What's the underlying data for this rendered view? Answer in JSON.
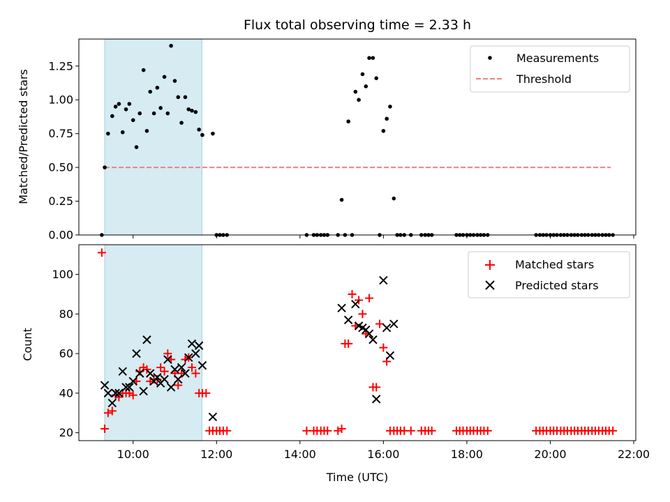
{
  "chart_data": {
    "title": "Flux total observing time = 2.33 h",
    "xlabel": "Time (UTC)",
    "xlim": [
      8.7,
      22.05
    ],
    "xticks": [
      10,
      12,
      14,
      16,
      18,
      20,
      22
    ],
    "xtick_labels": [
      "10:00",
      "12:00",
      "14:00",
      "16:00",
      "18:00",
      "20:00",
      "22:00"
    ],
    "shaded_span": [
      9.32,
      11.65
    ],
    "shade_color": "#add8e6",
    "panels": [
      {
        "type": "scatter",
        "ylabel": "Matched/Predicted stars",
        "ylim": [
          0,
          1.45
        ],
        "yticks": [
          0.0,
          0.25,
          0.5,
          0.75,
          1.0,
          1.25
        ],
        "ytick_labels": [
          "0.00",
          "0.25",
          "0.50",
          "0.75",
          "1.00",
          "1.25"
        ],
        "legend": {
          "position": "top-right",
          "entries": [
            "Measurements",
            "Threshold"
          ]
        },
        "series": [
          {
            "name": "Measurements",
            "marker": "dot",
            "color": "#000000",
            "x": [
              9.25,
              9.32,
              9.4,
              9.5,
              9.58,
              9.66,
              9.75,
              9.83,
              9.91,
              10.0,
              10.08,
              10.16,
              10.25,
              10.33,
              10.41,
              10.5,
              10.58,
              10.66,
              10.75,
              10.83,
              10.91,
              11.0,
              11.08,
              11.16,
              11.25,
              11.33,
              11.41,
              11.5,
              11.58,
              11.66,
              11.91,
              12.0,
              12.08,
              12.16,
              12.25,
              14.16,
              14.33,
              14.41,
              14.5,
              14.58,
              14.66,
              14.91,
              15.0,
              15.08,
              15.16,
              15.25,
              15.33,
              15.41,
              15.5,
              15.58,
              15.66,
              15.75,
              15.83,
              15.91,
              16.0,
              16.08,
              16.16,
              16.25,
              16.33,
              16.41,
              16.5,
              16.66,
              16.91,
              17.0,
              17.08,
              17.16,
              17.75,
              17.83,
              17.91,
              18.0,
              18.08,
              18.16,
              18.25,
              18.33,
              18.41,
              18.5,
              19.66,
              19.75,
              19.83,
              19.91,
              20.0,
              20.08,
              20.16,
              20.25,
              20.33,
              20.41,
              20.5,
              20.58,
              20.66,
              20.75,
              20.83,
              20.91,
              21.0,
              21.08,
              21.16,
              21.25,
              21.33,
              21.41,
              21.5
            ],
            "y": [
              0.0,
              0.5,
              0.75,
              0.88,
              0.95,
              0.97,
              0.76,
              0.93,
              0.97,
              0.85,
              0.65,
              0.9,
              1.22,
              0.77,
              1.06,
              0.9,
              1.09,
              0.94,
              1.17,
              0.9,
              1.4,
              1.14,
              1.02,
              0.83,
              1.02,
              0.93,
              0.92,
              0.91,
              0.78,
              0.74,
              0.75,
              0.0,
              0.0,
              0.0,
              0.0,
              0.0,
              0.0,
              0.0,
              0.0,
              0.0,
              0.0,
              0.0,
              0.26,
              0.0,
              0.84,
              0.0,
              1.06,
              1.0,
              1.19,
              1.1,
              1.31,
              1.31,
              1.16,
              0.0,
              0.77,
              0.86,
              0.95,
              0.27,
              0.0,
              0.0,
              0.0,
              0.0,
              0.0,
              0.0,
              0.0,
              0.0,
              0.0,
              0.0,
              0.0,
              0.0,
              0.0,
              0.0,
              0.0,
              0.0,
              0.0,
              0.0,
              0.0,
              0.0,
              0.0,
              0.0,
              0.0,
              0.0,
              0.0,
              0.0,
              0.0,
              0.0,
              0.0,
              0.0,
              0.0,
              0.0,
              0.0,
              0.0,
              0.0,
              0.0,
              0.0,
              0.0,
              0.0,
              0.0,
              0.0
            ]
          },
          {
            "name": "Threshold",
            "type": "line",
            "style": "dashed",
            "color": "#f08080",
            "x": [
              9.32,
              21.45
            ],
            "y": [
              0.5,
              0.5
            ]
          }
        ]
      },
      {
        "type": "scatter",
        "ylabel": "Count",
        "ylim": [
          16,
          115
        ],
        "yticks": [
          20,
          40,
          60,
          80,
          100
        ],
        "ytick_labels": [
          "20",
          "40",
          "60",
          "80",
          "100"
        ],
        "legend": {
          "position": "top-right",
          "entries": [
            "Matched stars",
            "Predicted stars"
          ]
        },
        "series": [
          {
            "name": "Matched stars",
            "marker": "plus",
            "color": "#ff0000",
            "x": [
              9.25,
              9.32,
              9.4,
              9.5,
              9.58,
              9.66,
              9.75,
              9.83,
              9.91,
              10.0,
              10.08,
              10.16,
              10.25,
              10.33,
              10.41,
              10.5,
              10.58,
              10.66,
              10.75,
              10.83,
              10.91,
              11.0,
              11.08,
              11.16,
              11.25,
              11.33,
              11.41,
              11.5,
              11.58,
              11.66,
              11.75,
              11.83,
              11.91,
              12.0,
              12.08,
              12.16,
              12.25,
              14.16,
              14.33,
              14.41,
              14.5,
              14.58,
              14.66,
              14.91,
              15.0,
              15.08,
              15.16,
              15.25,
              15.33,
              15.41,
              15.5,
              15.58,
              15.66,
              15.75,
              15.83,
              15.91,
              16.0,
              16.08,
              16.16,
              16.25,
              16.33,
              16.41,
              16.5,
              16.66,
              16.91,
              17.0,
              17.08,
              17.16,
              17.75,
              17.83,
              17.91,
              18.0,
              18.08,
              18.16,
              18.25,
              18.33,
              18.41,
              18.5,
              19.66,
              19.75,
              19.83,
              19.91,
              20.0,
              20.08,
              20.16,
              20.25,
              20.33,
              20.41,
              20.5,
              20.58,
              20.66,
              20.75,
              20.83,
              20.91,
              21.0,
              21.08,
              21.16,
              21.25,
              21.33,
              21.41,
              21.5
            ],
            "y": [
              111,
              22,
              30,
              31,
              39,
              38,
              40,
              40,
              40,
              39,
              46,
              51,
              53,
              52,
              46,
              47,
              47,
              53,
              51,
              60,
              57,
              50,
              44,
              50,
              57,
              58,
              53,
              50,
              40,
              40,
              40,
              21,
              21,
              21,
              21,
              21,
              21,
              21,
              21,
              21,
              21,
              21,
              21,
              21,
              22,
              65,
              65,
              90,
              74,
              87,
              80,
              70,
              88,
              43,
              43,
              75,
              63,
              56,
              21,
              21,
              21,
              21,
              21,
              21,
              21,
              21,
              21,
              21,
              21,
              21,
              21,
              21,
              21,
              21,
              21,
              21,
              21,
              21,
              21,
              21,
              21,
              21,
              21,
              21,
              21,
              21,
              21,
              21,
              21,
              21,
              21,
              21,
              21,
              21,
              21,
              21,
              21,
              21,
              21,
              21,
              21
            ]
          },
          {
            "name": "Predicted stars",
            "marker": "x",
            "color": "#000000",
            "x": [
              9.32,
              9.4,
              9.5,
              9.58,
              9.66,
              9.75,
              9.83,
              9.91,
              10.0,
              10.08,
              10.16,
              10.25,
              10.33,
              10.41,
              10.5,
              10.58,
              10.66,
              10.75,
              10.83,
              10.91,
              11.0,
              11.08,
              11.16,
              11.25,
              11.33,
              11.41,
              11.5,
              11.58,
              11.66,
              11.91,
              15.0,
              15.16,
              15.33,
              15.41,
              15.5,
              15.58,
              15.66,
              15.75,
              15.83,
              16.0,
              16.08,
              16.16,
              16.25
            ],
            "y": [
              44,
              40,
              35,
              40,
              40,
              51,
              43,
              43,
              46,
              60,
              50,
              41,
              67,
              50,
              46,
              48,
              45,
              47,
              57,
              43,
              52,
              47,
              53,
              50,
              58,
              65,
              60,
              64,
              54,
              28,
              83,
              77,
              85,
              74,
              73,
              72,
              70,
              67,
              37,
              97,
              73,
              59,
              75
            ]
          }
        ]
      }
    ]
  }
}
